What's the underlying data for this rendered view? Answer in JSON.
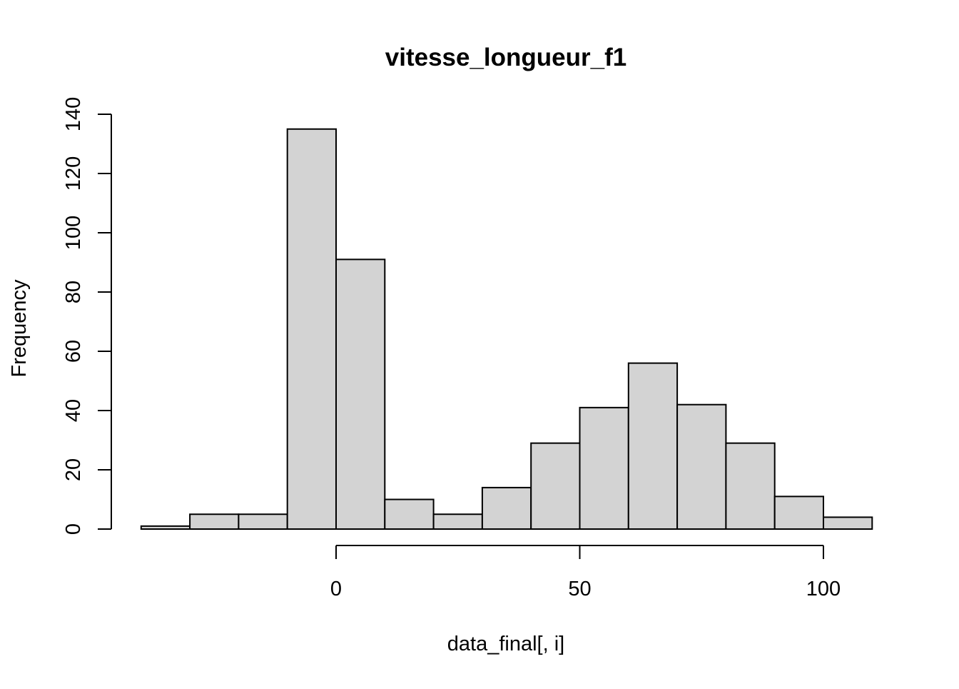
{
  "chart_data": {
    "type": "bar",
    "title": "vitesse_longueur_f1",
    "xlabel": "data_final[, i]",
    "ylabel": "Frequency",
    "bins": [
      {
        "x0": -40,
        "x1": -30,
        "count": 1
      },
      {
        "x0": -30,
        "x1": -20,
        "count": 5
      },
      {
        "x0": -20,
        "x1": -10,
        "count": 5
      },
      {
        "x0": -10,
        "x1": 0,
        "count": 135
      },
      {
        "x0": 0,
        "x1": 10,
        "count": 91
      },
      {
        "x0": 10,
        "x1": 20,
        "count": 10
      },
      {
        "x0": 20,
        "x1": 30,
        "count": 5
      },
      {
        "x0": 30,
        "x1": 40,
        "count": 14
      },
      {
        "x0": 40,
        "x1": 50,
        "count": 29
      },
      {
        "x0": 50,
        "x1": 60,
        "count": 41
      },
      {
        "x0": 60,
        "x1": 70,
        "count": 56
      },
      {
        "x0": 70,
        "x1": 80,
        "count": 42
      },
      {
        "x0": 80,
        "x1": 90,
        "count": 29
      },
      {
        "x0": 90,
        "x1": 100,
        "count": 11
      },
      {
        "x0": 100,
        "x1": 110,
        "count": 4
      }
    ],
    "xticks": [
      0,
      50,
      100
    ],
    "yticks": [
      0,
      20,
      40,
      60,
      80,
      100,
      120,
      140
    ],
    "xlim": [
      -40,
      110
    ],
    "ylim": [
      0,
      140
    ],
    "bar_fill": "#d3d3d3",
    "bar_stroke": "#000000",
    "grid": false
  }
}
